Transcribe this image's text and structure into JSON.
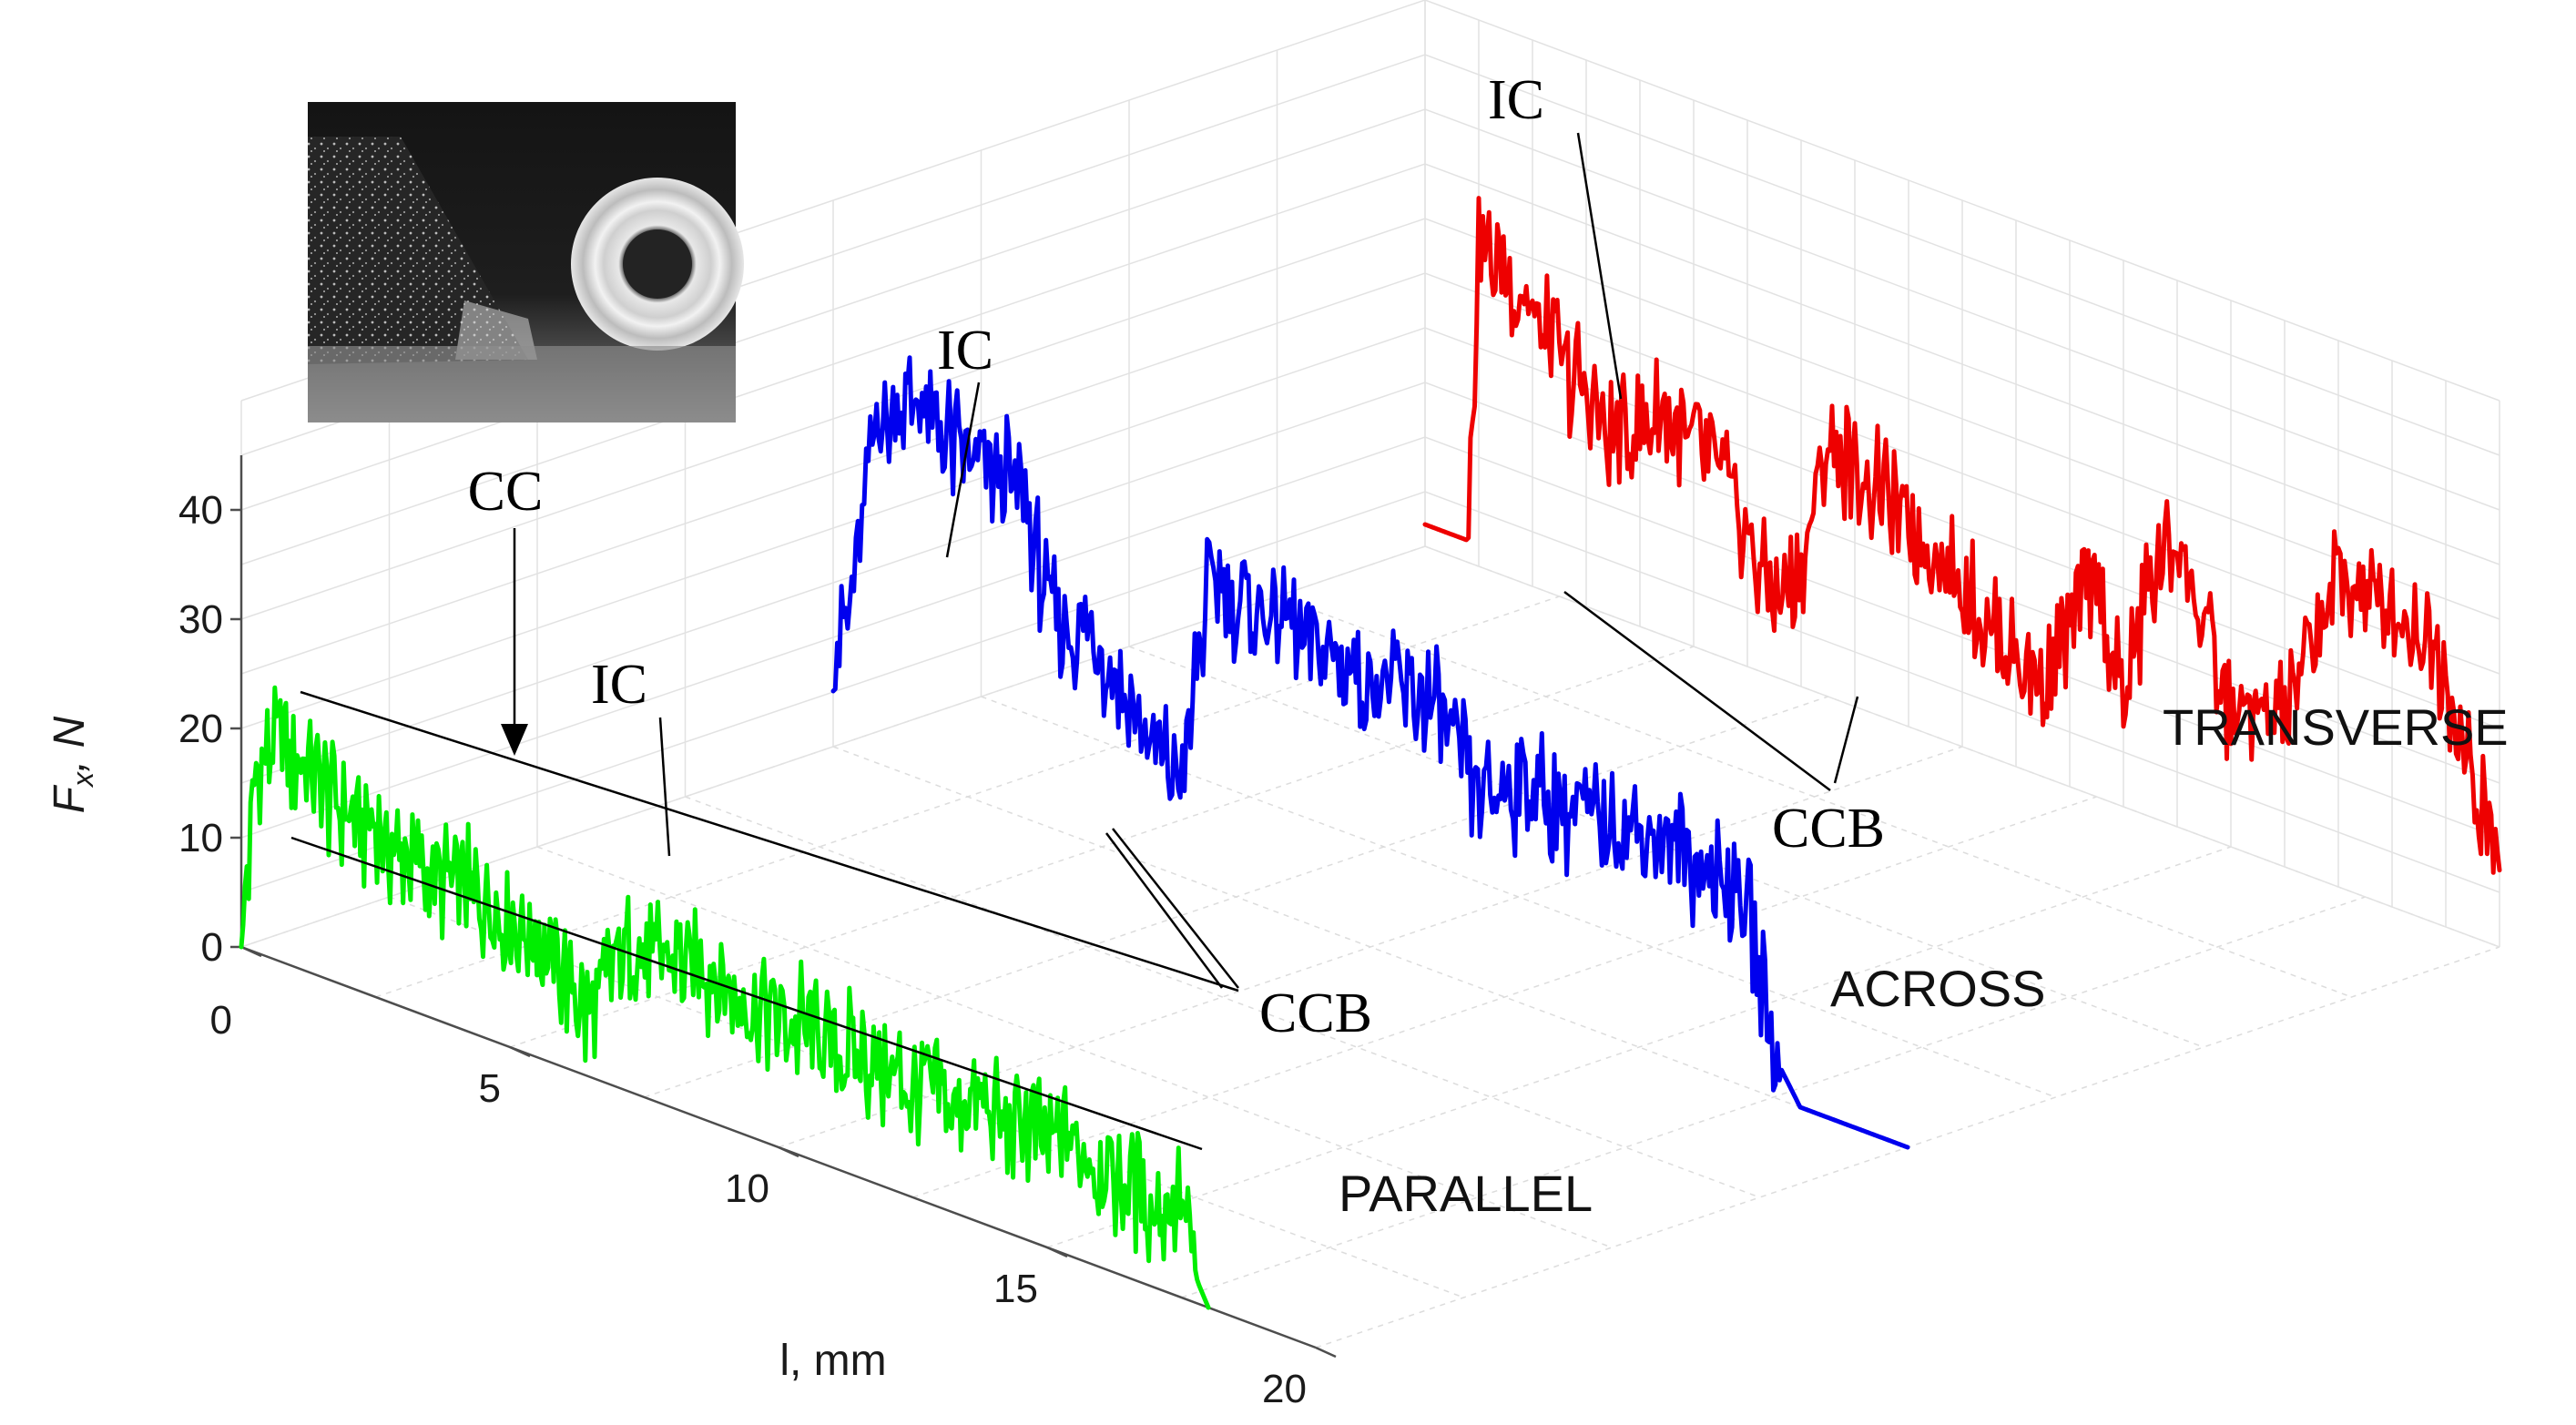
{
  "chart_data": {
    "type": "line",
    "title": "",
    "xlabel": "l, mm",
    "ylabel_main": "F",
    "ylabel_sub": "x",
    "ylabel_unit": ", N",
    "xlim": [
      0,
      20
    ],
    "ylim": [
      0,
      40
    ],
    "x_ticks": [
      "0",
      "5",
      "10",
      "15",
      "20"
    ],
    "y_ticks": [
      "0",
      "10",
      "20",
      "30",
      "40"
    ],
    "grid": true,
    "series": [
      {
        "name": "PARALLEL",
        "color": "#00ee00",
        "x": [
          0.0,
          0.3,
          0.8,
          1.5,
          2.5,
          3.5,
          4.5,
          5.5,
          6.5,
          7.0,
          7.5,
          8.5,
          9.5,
          10.5,
          11.5,
          12.5,
          13.5,
          14.5,
          15.5,
          16.5,
          17.0,
          17.5,
          17.8,
          18.0
        ],
        "values": [
          0,
          18,
          20,
          17,
          15,
          13,
          13,
          11,
          5,
          12,
          13,
          14,
          12,
          12,
          11,
          10,
          10,
          10,
          10,
          9,
          7,
          9,
          2,
          0
        ]
      },
      {
        "name": "ACROSS",
        "color": "#0000ee",
        "x": [
          0.0,
          0.3,
          0.8,
          1.5,
          2.5,
          3.5,
          4.0,
          5.0,
          6.0,
          6.5,
          7.0,
          8.0,
          9.0,
          10.0,
          11.0,
          12.0,
          13.0,
          14.0,
          15.0,
          16.0,
          17.0,
          17.5,
          18.0,
          19.0,
          20.0
        ],
        "values": [
          10,
          12,
          32,
          34,
          31,
          30,
          20,
          18,
          10,
          9,
          28,
          27,
          26,
          24,
          25,
          18,
          20,
          19,
          20,
          19,
          18,
          4,
          0,
          0,
          0
        ]
      },
      {
        "name": "TRANSVERSE",
        "color": "#ee0000",
        "x": [
          0.0,
          0.8,
          1.0,
          1.5,
          2.5,
          3.5,
          4.5,
          5.5,
          6.5,
          7.0,
          7.5,
          8.5,
          9.5,
          10.5,
          11.5,
          12.5,
          13.0,
          13.5,
          14.0,
          15.0,
          16.0,
          17.0,
          18.0,
          19.0,
          19.5,
          20.0
        ],
        "values": [
          2,
          2,
          30,
          28,
          22,
          16,
          20,
          17,
          7,
          10,
          23,
          20,
          17,
          12,
          8,
          20,
          9,
          22,
          26,
          12,
          14,
          28,
          28,
          24,
          13,
          8
        ]
      }
    ],
    "annotations": [
      {
        "text": "CC"
      },
      {
        "text": "IC"
      },
      {
        "text": "IC"
      },
      {
        "text": "IC"
      },
      {
        "text": "CCB"
      },
      {
        "text": "CCB"
      }
    ]
  }
}
